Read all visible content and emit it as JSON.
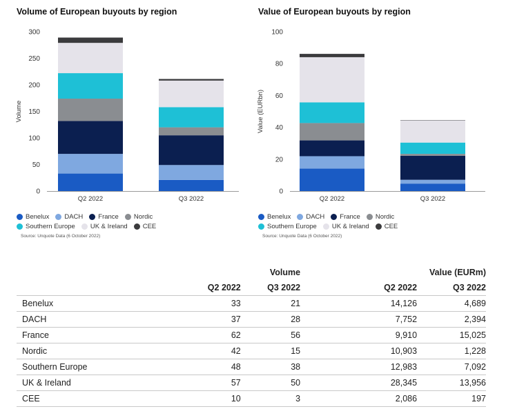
{
  "colors": {
    "Benelux": "#1a5bc4",
    "DACH": "#7fa8e0",
    "France": "#0b1f50",
    "Nordic": "#8a8d91",
    "Southern Europe": "#1ec0d6",
    "UK & Ireland": "#e5e3ea",
    "CEE": "#3b3b3d"
  },
  "chart_data": [
    {
      "type": "bar",
      "stacked": true,
      "title": "Volume of European buyouts by region",
      "ylabel": "Volume",
      "xlabel": "",
      "categories": [
        "Q2 2022",
        "Q3 2022"
      ],
      "ylim": [
        0,
        300
      ],
      "yticks": [
        0,
        50,
        100,
        150,
        200,
        250,
        300
      ],
      "series": [
        {
          "name": "Benelux",
          "values": [
            33,
            21
          ]
        },
        {
          "name": "DACH",
          "values": [
            37,
            28
          ]
        },
        {
          "name": "France",
          "values": [
            62,
            56
          ]
        },
        {
          "name": "Nordic",
          "values": [
            42,
            15
          ]
        },
        {
          "name": "Southern Europe",
          "values": [
            48,
            38
          ]
        },
        {
          "name": "UK & Ireland",
          "values": [
            57,
            50
          ]
        },
        {
          "name": "CEE",
          "values": [
            10,
            3
          ]
        }
      ],
      "legend": "bottom",
      "source": "Source: Unquote Data (6 October 2022)"
    },
    {
      "type": "bar",
      "stacked": true,
      "title": "Value of European buyouts by region",
      "ylabel": "Value (EURbn)",
      "xlabel": "",
      "categories": [
        "Q2 2022",
        "Q3 2022"
      ],
      "ylim": [
        0,
        100
      ],
      "yticks": [
        0,
        20,
        40,
        60,
        80,
        100
      ],
      "series": [
        {
          "name": "Benelux",
          "values": [
            14.126,
            4.689
          ]
        },
        {
          "name": "DACH",
          "values": [
            7.752,
            2.394
          ]
        },
        {
          "name": "France",
          "values": [
            9.91,
            15.025
          ]
        },
        {
          "name": "Nordic",
          "values": [
            10.903,
            1.228
          ]
        },
        {
          "name": "Southern Europe",
          "values": [
            12.983,
            7.092
          ]
        },
        {
          "name": "UK & Ireland",
          "values": [
            28.345,
            13.956
          ]
        },
        {
          "name": "CEE",
          "values": [
            2.086,
            0.197
          ]
        }
      ],
      "legend": "bottom",
      "source": "Source: Unquote Data (6 October 2022)"
    }
  ],
  "table": {
    "group_headers": {
      "volume": "Volume",
      "value": "Value (EURm)"
    },
    "columns": [
      "Q2 2022",
      "Q3 2022",
      "Q2 2022",
      "Q3 2022"
    ],
    "rows": [
      {
        "region": "Benelux",
        "vol_q2": "33",
        "vol_q3": "21",
        "val_q2": "14,126",
        "val_q3": "4,689"
      },
      {
        "region": "DACH",
        "vol_q2": "37",
        "vol_q3": "28",
        "val_q2": "7,752",
        "val_q3": "2,394"
      },
      {
        "region": "France",
        "vol_q2": "62",
        "vol_q3": "56",
        "val_q2": "9,910",
        "val_q3": "15,025"
      },
      {
        "region": "Nordic",
        "vol_q2": "42",
        "vol_q3": "15",
        "val_q2": "10,903",
        "val_q3": "1,228"
      },
      {
        "region": "Southern Europe",
        "vol_q2": "48",
        "vol_q3": "38",
        "val_q2": "12,983",
        "val_q3": "7,092"
      },
      {
        "region": "UK & Ireland",
        "vol_q2": "57",
        "vol_q3": "50",
        "val_q2": "28,345",
        "val_q3": "13,956"
      },
      {
        "region": "CEE",
        "vol_q2": "10",
        "vol_q3": "3",
        "val_q2": "2,086",
        "val_q3": "197"
      }
    ]
  }
}
